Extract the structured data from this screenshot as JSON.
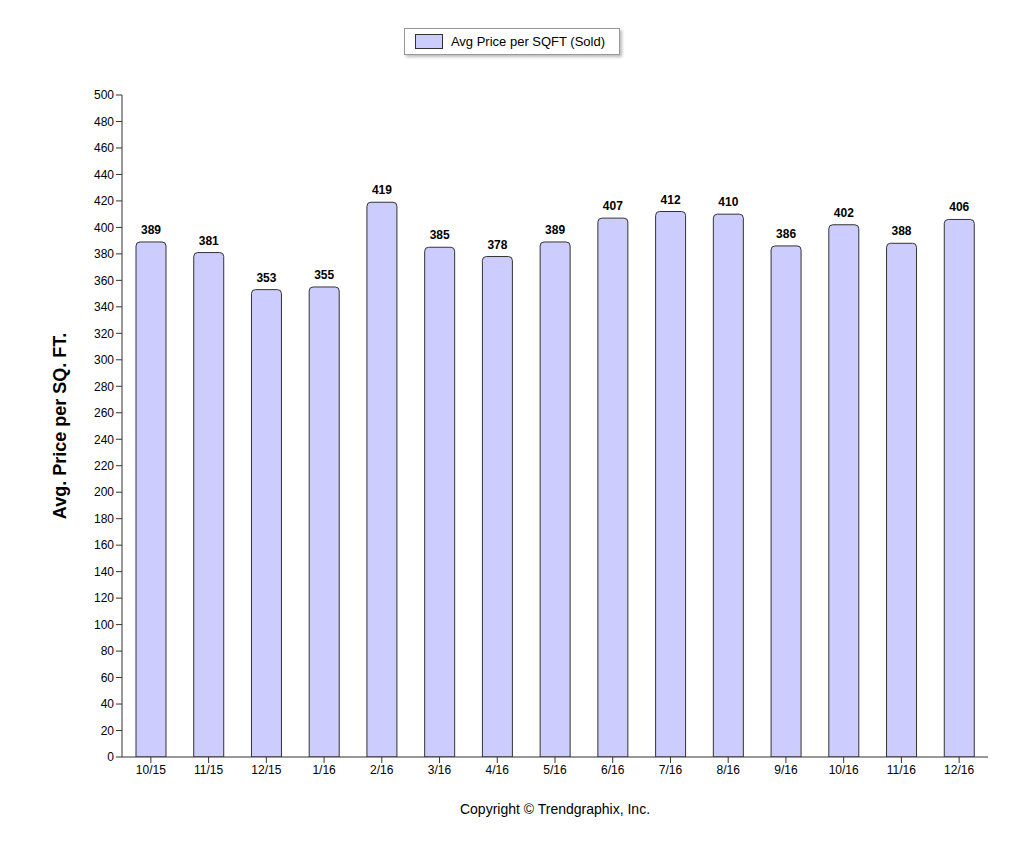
{
  "chart_data": {
    "type": "bar",
    "y_label": "Avg. Price per SQ. FT.",
    "annotations": [
      "Copyright © Trendgraphix, Inc."
    ],
    "categories": [
      "10/15",
      "11/15",
      "12/15",
      "1/16",
      "2/16",
      "3/16",
      "4/16",
      "5/16",
      "6/16",
      "7/16",
      "8/16",
      "9/16",
      "10/16",
      "11/16",
      "12/16"
    ],
    "series": [
      {
        "name": "Avg Price per SQFT (Sold)",
        "color": "#ccccff",
        "values": [
          389,
          381,
          353,
          355,
          419,
          385,
          378,
          389,
          407,
          412,
          410,
          386,
          402,
          388,
          406
        ]
      }
    ],
    "ylim": [
      0,
      500
    ],
    "yticks": [
      0,
      20,
      40,
      60,
      80,
      100,
      120,
      140,
      160,
      180,
      200,
      220,
      240,
      260,
      280,
      300,
      320,
      340,
      360,
      380,
      400,
      420,
      440,
      460,
      480,
      500
    ],
    "grid": false,
    "legend": "top",
    "data_labels": true
  }
}
